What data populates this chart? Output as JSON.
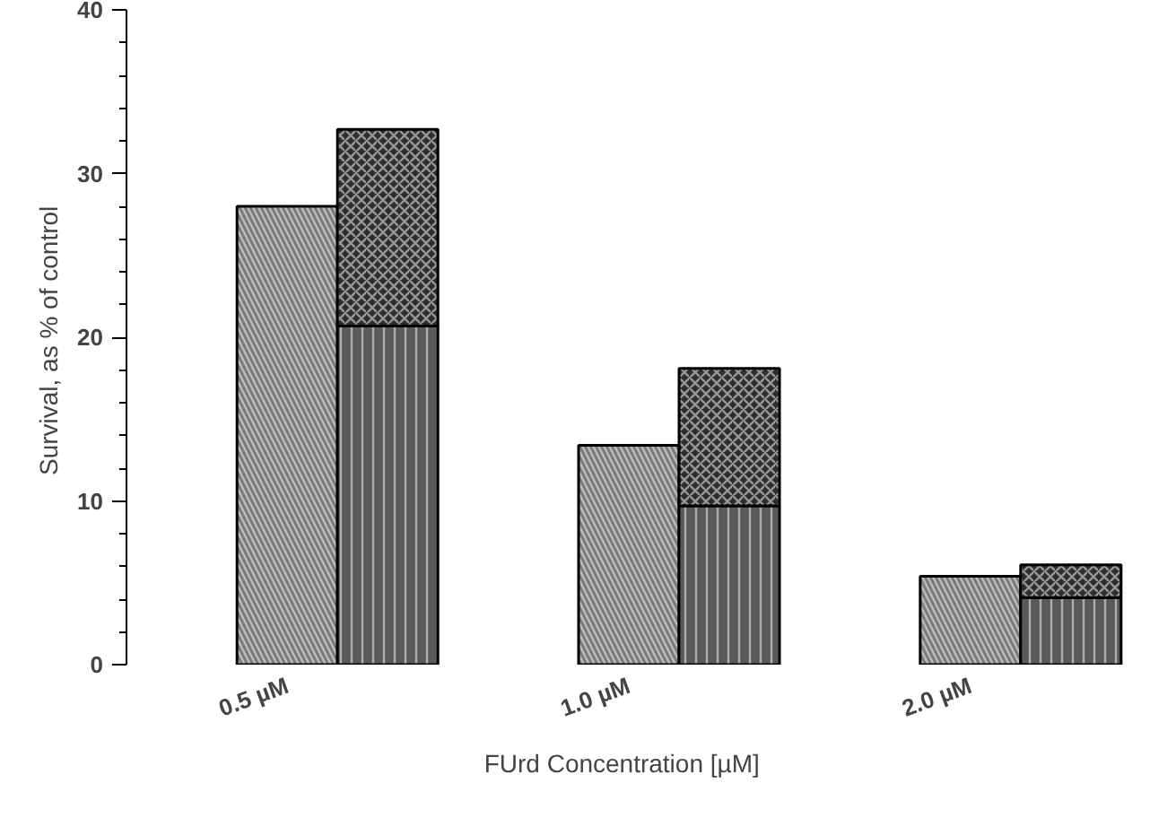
{
  "chart_data": {
    "type": "bar",
    "stacked": true,
    "xlabel": "FUrd Concentration   [µM]",
    "ylabel": "Survival,  as % of control",
    "categories": [
      "0.5 µM",
      null,
      "1.0 µM",
      null,
      "2.0 µM",
      null
    ],
    "series": [
      {
        "color": "#7a7a7a",
        "values": [
          28.0,
          null,
          13.4,
          null,
          5.4,
          null
        ]
      },
      {
        "color": "#5a5a5a",
        "values": [
          null,
          20.7,
          null,
          9.7,
          null,
          4.1
        ]
      },
      {
        "color": "#2e2e2e",
        "values": [
          null,
          12.0,
          null,
          8.4,
          null,
          2.0
        ]
      }
    ],
    "ylim": [
      0,
      40
    ],
    "yticks": [
      0,
      10,
      20,
      30,
      40
    ],
    "grid": false
  }
}
